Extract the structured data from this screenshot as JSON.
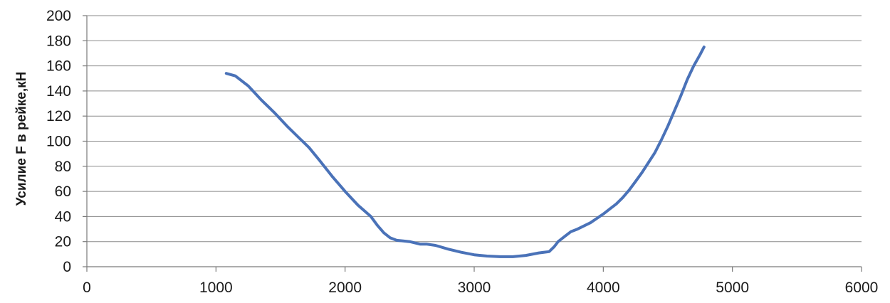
{
  "chart_data": {
    "type": "line",
    "title": "",
    "xlabel": "",
    "ylabel": "Усилие F в рейке,кН",
    "xlim": [
      0,
      6000
    ],
    "ylim": [
      0,
      200
    ],
    "x_ticks": [
      0,
      1000,
      2000,
      3000,
      4000,
      5000,
      6000
    ],
    "y_ticks": [
      0,
      20,
      40,
      60,
      80,
      100,
      120,
      140,
      160,
      180,
      200
    ],
    "grid": "horizontal",
    "legend": "none",
    "colors": {
      "series": "#4a72b8",
      "grid": "#8a8a8a",
      "axis": "#7a7a7a"
    },
    "series": [
      {
        "x": [
          1080,
          1150,
          1250,
          1350,
          1450,
          1550,
          1650,
          1720,
          1800,
          1900,
          2000,
          2100,
          2200,
          2250,
          2300,
          2350,
          2400,
          2450,
          2500,
          2580,
          2630,
          2700,
          2800,
          2900,
          3000,
          3100,
          3200,
          3300,
          3400,
          3500,
          3580,
          3620,
          3650,
          3700,
          3750,
          3800,
          3900,
          3950,
          4000,
          4050,
          4100,
          4150,
          4200,
          4250,
          4300,
          4350,
          4400,
          4450,
          4500,
          4550,
          4600,
          4650,
          4700,
          4750,
          4780
        ],
        "y": [
          154,
          152,
          144,
          133,
          123,
          112,
          102,
          95,
          85,
          72,
          60,
          49,
          40,
          33,
          27,
          23,
          21,
          20.5,
          20,
          18,
          18,
          17,
          14,
          11.5,
          9.5,
          8.5,
          8,
          8,
          9,
          11,
          12,
          16,
          20,
          24,
          28,
          30,
          35,
          38.5,
          42,
          46,
          50,
          55,
          61,
          68,
          75,
          83,
          91,
          101,
          112,
          124,
          136,
          149,
          160,
          169,
          175
        ]
      }
    ]
  }
}
